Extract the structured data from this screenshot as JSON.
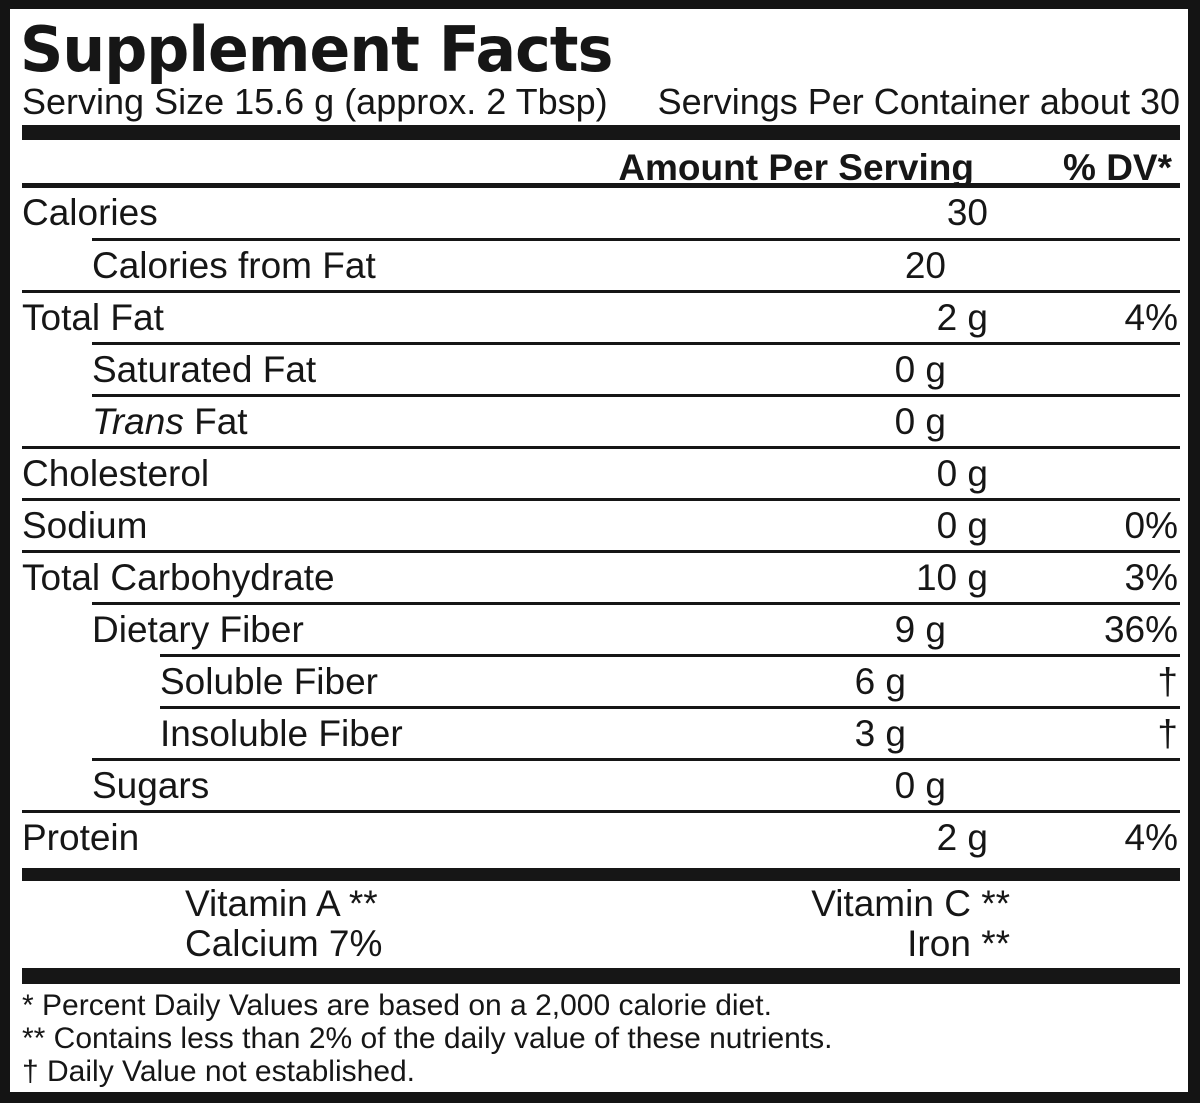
{
  "label": {
    "title": "Supplement Facts",
    "serving_size": "Serving Size 15.6 g (approx. 2 Tbsp)",
    "servings_per_container": "Servings Per Container about 30",
    "column_headers": {
      "amount": "Amount Per Serving",
      "dv": "% DV*"
    },
    "rows": [
      {
        "name": "Calories",
        "indent": 0,
        "amount": "30",
        "dv": ""
      },
      {
        "name": "Calories from Fat",
        "indent": 1,
        "amount": "20",
        "dv": ""
      },
      {
        "name": "Total Fat",
        "indent": 0,
        "amount": "2 g",
        "dv": "4%"
      },
      {
        "name": "Saturated Fat",
        "indent": 1,
        "amount": "0 g",
        "dv": ""
      },
      {
        "name": "Trans Fat",
        "indent": 1,
        "amount": "0 g",
        "dv": "",
        "italic_prefix": "Trans"
      },
      {
        "name": "Cholesterol",
        "indent": 0,
        "amount": "0 g",
        "dv": ""
      },
      {
        "name": "Sodium",
        "indent": 0,
        "amount": "0 g",
        "dv": "0%"
      },
      {
        "name": "Total Carbohydrate",
        "indent": 0,
        "amount": "10 g",
        "dv": "3%"
      },
      {
        "name": "Dietary Fiber",
        "indent": 1,
        "amount": "9 g",
        "dv": "36%"
      },
      {
        "name": "Soluble Fiber",
        "indent": 2,
        "amount": "6 g",
        "dv": "†"
      },
      {
        "name": "Insoluble Fiber",
        "indent": 2,
        "amount": "3 g",
        "dv": "†"
      },
      {
        "name": "Sugars",
        "indent": 1,
        "amount": "0 g",
        "dv": ""
      },
      {
        "name": "Protein",
        "indent": 0,
        "amount": "2 g",
        "dv": "4%"
      }
    ],
    "micronutrients": [
      {
        "left": "Vitamin A **",
        "right": "Vitamin C **"
      },
      {
        "left": "Calcium 7%",
        "right": "Iron **"
      }
    ],
    "footnotes": [
      "* Percent Daily Values are based on a 2,000 calorie diet.",
      "** Contains less than 2% of the daily value of these nutrients.",
      "† Daily Value not established."
    ]
  }
}
